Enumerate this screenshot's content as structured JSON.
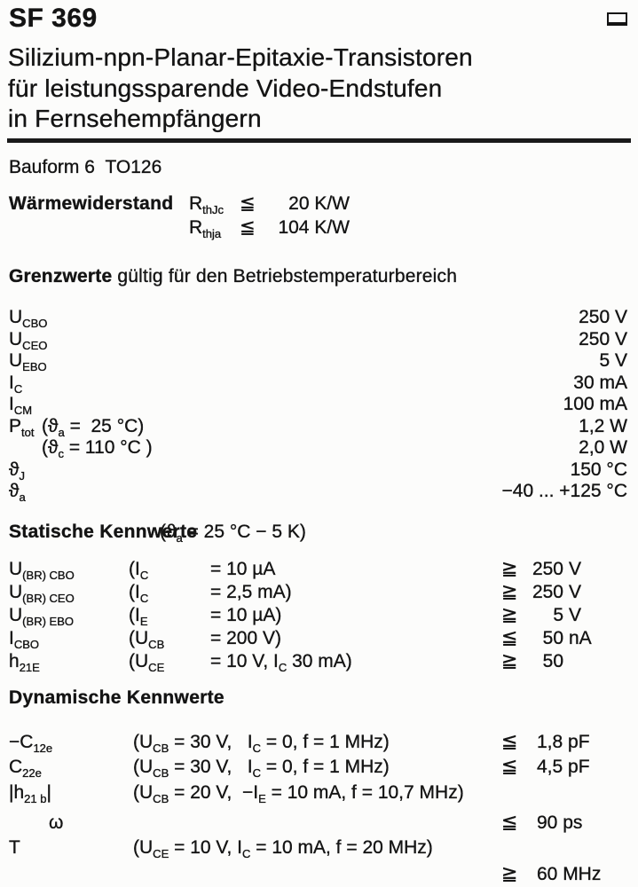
{
  "header": {
    "part_number": "SF 369",
    "subtitle_lines": "Silizium-npn-Planar-Epitaxie-Transistoren\nfür leistungssparende Video-Endstufen\nin Fernsehempfängern"
  },
  "package_line": {
    "bauform": "Bauform 6",
    "package": "TO126"
  },
  "thermal": {
    "label": "Wärmewiderstand",
    "rows": [
      {
        "sym": [
          [
            "t",
            "R"
          ],
          [
            "s",
            "thJc"
          ]
        ],
        "rel": "≦",
        "val": "20 K/W"
      },
      {
        "sym": [
          [
            "t",
            "R"
          ],
          [
            "s",
            "thja"
          ]
        ],
        "rel": "≦",
        "val": "104 K/W"
      }
    ]
  },
  "grenzwerte": {
    "heading_bold": "Grenzwerte",
    "heading_rest": " gültig für den Betriebstemperaturbereich",
    "rows": [
      {
        "sym": [
          [
            "t",
            "U"
          ],
          [
            "s",
            "CBO"
          ]
        ],
        "cond": [],
        "val": "250 V"
      },
      {
        "sym": [
          [
            "t",
            "U"
          ],
          [
            "s",
            "CEO"
          ]
        ],
        "cond": [],
        "val": "250 V"
      },
      {
        "sym": [
          [
            "t",
            "U"
          ],
          [
            "s",
            "EBO"
          ]
        ],
        "cond": [],
        "val": "5 V"
      },
      {
        "sym": [
          [
            "t",
            "I"
          ],
          [
            "s",
            "C"
          ]
        ],
        "cond": [],
        "val": "30 mA"
      },
      {
        "sym": [
          [
            "t",
            "I"
          ],
          [
            "s",
            "CM"
          ]
        ],
        "cond": [],
        "val": "100 mA"
      },
      {
        "sym": [
          [
            "t",
            "P"
          ],
          [
            "s",
            "tot"
          ]
        ],
        "cond": [
          [
            "t",
            "(ϑ"
          ],
          [
            "s",
            "a"
          ],
          [
            "t",
            " =  25 °C)"
          ]
        ],
        "val": "1,2 W"
      },
      {
        "sym": [],
        "cond": [
          [
            "t",
            "(ϑ"
          ],
          [
            "s",
            "c"
          ],
          [
            "t",
            " = 110 °C )"
          ]
        ],
        "val": "2,0 W"
      },
      {
        "sym": [
          [
            "t",
            "ϑ"
          ],
          [
            "s",
            "J"
          ]
        ],
        "cond": [],
        "val": "150 °C"
      },
      {
        "sym": [
          [
            "t",
            "ϑ"
          ],
          [
            "s",
            "a"
          ]
        ],
        "cond": [],
        "val": "−40 ... +125 °C"
      }
    ]
  },
  "statische": {
    "heading": "Statische Kennwerte",
    "condition": [
      [
        "t",
        "(ϑ"
      ],
      [
        "s",
        "a"
      ],
      [
        "t",
        " = 25 °C − 5 K)"
      ]
    ],
    "rows": [
      {
        "sym": [
          [
            "t",
            "U"
          ],
          [
            "s",
            "(BR) CBO"
          ]
        ],
        "c1": [
          [
            "t",
            "(I"
          ],
          [
            "s",
            "C"
          ]
        ],
        "c2": [
          [
            "t",
            "= 10 µA"
          ]
        ],
        "rel": "≧",
        "num": "250",
        "unit": "V"
      },
      {
        "sym": [
          [
            "t",
            "U"
          ],
          [
            "s",
            "(BR) CEO"
          ]
        ],
        "c1": [
          [
            "t",
            "(I"
          ],
          [
            "s",
            "C"
          ]
        ],
        "c2": [
          [
            "t",
            "= 2,5 mA)"
          ]
        ],
        "rel": "≧",
        "num": "250",
        "unit": "V"
      },
      {
        "sym": [
          [
            "t",
            "U"
          ],
          [
            "s",
            "(BR) EBO"
          ]
        ],
        "c1": [
          [
            "t",
            "(I"
          ],
          [
            "s",
            "E"
          ]
        ],
        "c2": [
          [
            "t",
            "= 10 µA)"
          ]
        ],
        "rel": "≧",
        "num": "5",
        "unit": "V"
      },
      {
        "sym": [
          [
            "t",
            "I"
          ],
          [
            "s",
            "CBO"
          ]
        ],
        "c1": [
          [
            "t",
            "(U"
          ],
          [
            "s",
            "CB"
          ]
        ],
        "c2": [
          [
            "t",
            "= 200 V)"
          ]
        ],
        "rel": "≦",
        "num": "50",
        "unit": "nA"
      },
      {
        "sym": [
          [
            "t",
            "h"
          ],
          [
            "s",
            "21E"
          ]
        ],
        "c1": [
          [
            "t",
            "(U"
          ],
          [
            "s",
            "CE"
          ]
        ],
        "c2": [
          [
            "t",
            "= 10 V, I"
          ],
          [
            "s",
            "C"
          ],
          [
            "t",
            " 30 mA)"
          ]
        ],
        "rel": "≧",
        "num": "50",
        "unit": ""
      }
    ]
  },
  "dynamische": {
    "heading": "Dynamische Kennwerte",
    "rows": [
      {
        "sym": [
          [
            "t",
            "−C"
          ],
          [
            "s",
            "12e"
          ]
        ],
        "cond": [
          [
            "t",
            "(U"
          ],
          [
            "s",
            "CB"
          ],
          [
            "t",
            " = 30 V,   I"
          ],
          [
            "s",
            "C"
          ],
          [
            "t",
            " = 0, f = 1 MHz)"
          ]
        ],
        "rel": "≦",
        "val": "1,8 pF"
      },
      {
        "sym": [
          [
            "t",
            "C"
          ],
          [
            "s",
            "22e"
          ]
        ],
        "cond": [
          [
            "t",
            "(U"
          ],
          [
            "s",
            "CB"
          ],
          [
            "t",
            " = 30 V,   I"
          ],
          [
            "s",
            "C"
          ],
          [
            "t",
            " = 0, f = 1 MHz)"
          ]
        ],
        "rel": "≦",
        "val": "4,5 pF"
      },
      {
        "sym": [
          [
            "t",
            "|h"
          ],
          [
            "s",
            "21 b"
          ],
          [
            "t",
            "|"
          ]
        ],
        "cond": [
          [
            "t",
            "(U"
          ],
          [
            "s",
            "CB"
          ],
          [
            "t",
            " = 20 V,  −I"
          ],
          [
            "s",
            "E"
          ],
          [
            "t",
            " = 10 mA, f = 10,7 MHz)"
          ]
        ],
        "rel": "",
        "val": ""
      },
      {
        "sym": [
          [
            "t",
            "ω"
          ]
        ],
        "cond": [],
        "rel": "≦",
        "val": "90 ps",
        "indent": true
      },
      {
        "sym": [
          [
            "t",
            "T"
          ]
        ],
        "cond": [
          [
            "t",
            "(U"
          ],
          [
            "s",
            "CE"
          ],
          [
            "t",
            " = 10 V, I"
          ],
          [
            "s",
            "C"
          ],
          [
            "t",
            " = 10 mA, f = 20 MHz)"
          ]
        ],
        "rel": "",
        "val": ""
      },
      {
        "sym": [],
        "cond": [],
        "rel": "≧",
        "val": "60 MHz"
      }
    ]
  }
}
